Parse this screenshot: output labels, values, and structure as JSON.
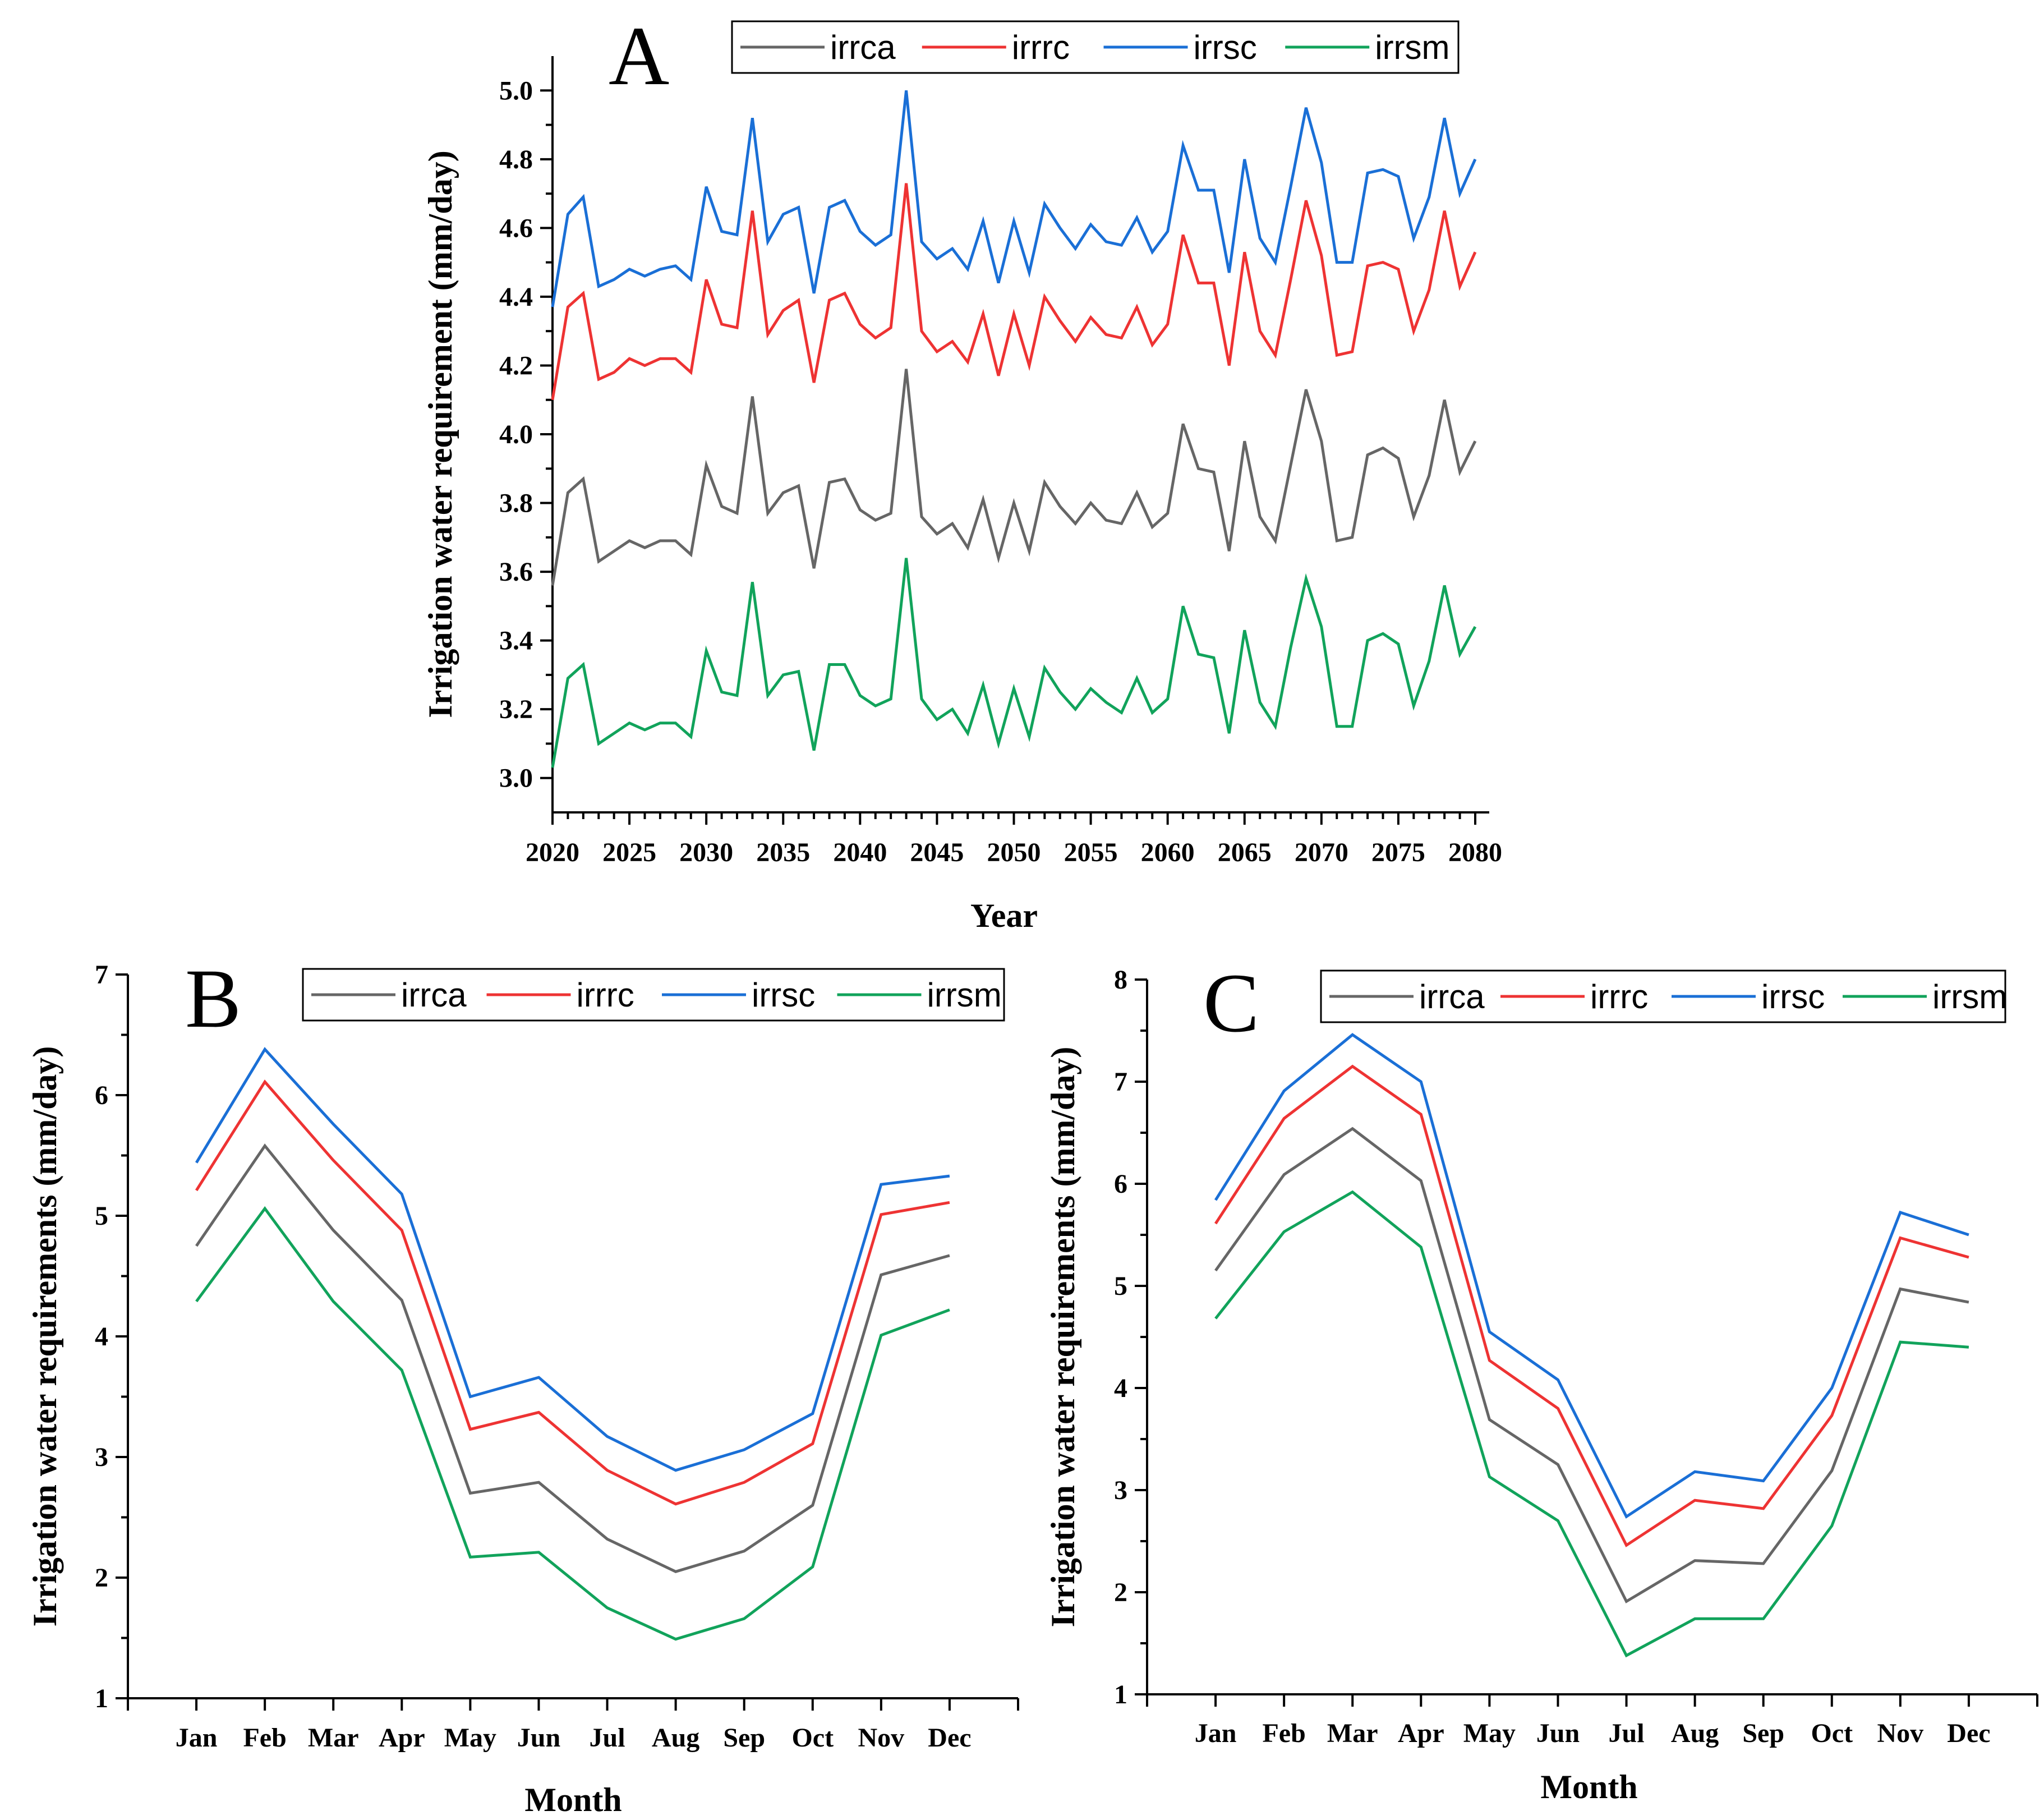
{
  "colors": {
    "irrca": "#666666",
    "irrrc": "#ee3333",
    "irrsc": "#1a6fd6",
    "irrsm": "#11a35b"
  },
  "chart_data": [
    {
      "type": "line",
      "panel": "A",
      "xlabel": "Year",
      "ylabel": "Irrigation water requirement (mm/day)",
      "xlim": [
        2020,
        2080
      ],
      "ylim": [
        2.9,
        5.1
      ],
      "xticks": [
        "2020",
        "2025",
        "2030",
        "2035",
        "2040",
        "2045",
        "2050",
        "2055",
        "2060",
        "2065",
        "2070",
        "2075",
        "2080"
      ],
      "yticks": [
        "3.0",
        "3.2",
        "3.4",
        "3.6",
        "3.8",
        "4.0",
        "4.2",
        "4.4",
        "4.6",
        "4.8",
        "5.0"
      ],
      "legend": [
        "irrca",
        "irrrc",
        "irrsc",
        "irrsm"
      ],
      "x": [
        2020,
        2021,
        2022,
        2023,
        2024,
        2025,
        2026,
        2027,
        2028,
        2029,
        2030,
        2031,
        2032,
        2033,
        2034,
        2035,
        2036,
        2037,
        2038,
        2039,
        2040,
        2041,
        2042,
        2043,
        2044,
        2045,
        2046,
        2047,
        2048,
        2049,
        2050,
        2051,
        2052,
        2053,
        2054,
        2055,
        2056,
        2057,
        2058,
        2059,
        2060,
        2061,
        2062,
        2063,
        2064,
        2065,
        2066,
        2067,
        2068,
        2069,
        2070,
        2071,
        2072,
        2073,
        2074,
        2075,
        2076,
        2077,
        2078,
        2079,
        2080
      ],
      "series": [
        {
          "name": "irrca",
          "values": [
            3.56,
            3.83,
            3.87,
            3.63,
            3.66,
            3.69,
            3.67,
            3.69,
            3.69,
            3.65,
            3.91,
            3.79,
            3.77,
            4.11,
            3.77,
            3.83,
            3.85,
            3.61,
            3.86,
            3.87,
            3.78,
            3.75,
            3.77,
            4.19,
            3.76,
            3.71,
            3.74,
            3.67,
            3.81,
            3.64,
            3.8,
            3.66,
            3.86,
            3.79,
            3.74,
            3.8,
            3.75,
            3.74,
            3.83,
            3.73,
            3.77,
            4.03,
            3.9,
            3.89,
            3.66,
            3.98,
            3.76,
            3.69,
            3.91,
            4.13,
            3.98,
            3.69,
            3.7,
            3.94,
            3.96,
            3.93,
            3.76,
            3.88,
            4.1,
            3.89,
            3.98
          ]
        },
        {
          "name": "irrrc",
          "values": [
            4.1,
            4.37,
            4.41,
            4.16,
            4.18,
            4.22,
            4.2,
            4.22,
            4.22,
            4.18,
            4.45,
            4.32,
            4.31,
            4.65,
            4.29,
            4.36,
            4.39,
            4.15,
            4.39,
            4.41,
            4.32,
            4.28,
            4.31,
            4.73,
            4.3,
            4.24,
            4.27,
            4.21,
            4.35,
            4.17,
            4.35,
            4.2,
            4.4,
            4.33,
            4.27,
            4.34,
            4.29,
            4.28,
            4.37,
            4.26,
            4.32,
            4.58,
            4.44,
            4.44,
            4.2,
            4.53,
            4.3,
            4.23,
            4.45,
            4.68,
            4.52,
            4.23,
            4.24,
            4.49,
            4.5,
            4.48,
            4.3,
            4.42,
            4.65,
            4.43,
            4.53
          ]
        },
        {
          "name": "irrsc",
          "values": [
            4.37,
            4.64,
            4.69,
            4.43,
            4.45,
            4.48,
            4.46,
            4.48,
            4.49,
            4.45,
            4.72,
            4.59,
            4.58,
            4.92,
            4.56,
            4.64,
            4.66,
            4.41,
            4.66,
            4.68,
            4.59,
            4.55,
            4.58,
            5.0,
            4.56,
            4.51,
            4.54,
            4.48,
            4.62,
            4.44,
            4.62,
            4.47,
            4.67,
            4.6,
            4.54,
            4.61,
            4.56,
            4.55,
            4.63,
            4.53,
            4.59,
            4.84,
            4.71,
            4.71,
            4.47,
            4.8,
            4.57,
            4.5,
            4.72,
            4.95,
            4.79,
            4.5,
            4.5,
            4.76,
            4.77,
            4.75,
            4.57,
            4.69,
            4.92,
            4.7,
            4.8
          ]
        },
        {
          "name": "irrsm",
          "values": [
            3.03,
            3.29,
            3.33,
            3.1,
            3.13,
            3.16,
            3.14,
            3.16,
            3.16,
            3.12,
            3.37,
            3.25,
            3.24,
            3.57,
            3.24,
            3.3,
            3.31,
            3.08,
            3.33,
            3.33,
            3.24,
            3.21,
            3.23,
            3.64,
            3.23,
            3.17,
            3.2,
            3.13,
            3.27,
            3.1,
            3.26,
            3.12,
            3.32,
            3.25,
            3.2,
            3.26,
            3.22,
            3.19,
            3.29,
            3.19,
            3.23,
            3.5,
            3.36,
            3.35,
            3.13,
            3.43,
            3.22,
            3.15,
            3.38,
            3.58,
            3.44,
            3.15,
            3.15,
            3.4,
            3.42,
            3.39,
            3.21,
            3.34,
            3.56,
            3.36,
            3.44
          ]
        }
      ]
    },
    {
      "type": "line",
      "panel": "B",
      "xlabel": "Month",
      "ylabel": "Irrigation water requirements (mm/day)",
      "ylim": [
        1,
        7
      ],
      "yticks": [
        "1",
        "2",
        "3",
        "4",
        "5",
        "6",
        "7"
      ],
      "categories": [
        "Jan",
        "Feb",
        "Mar",
        "Apr",
        "May",
        "Jun",
        "Jul",
        "Aug",
        "Sep",
        "Oct",
        "Nov",
        "Dec"
      ],
      "legend": [
        "irrca",
        "irrrc",
        "irrsc",
        "irrsm"
      ],
      "series": [
        {
          "name": "irrca",
          "values": [
            4.75,
            5.58,
            4.88,
            4.3,
            2.7,
            2.79,
            2.32,
            2.05,
            2.22,
            2.6,
            4.51,
            4.67
          ]
        },
        {
          "name": "irrrc",
          "values": [
            5.21,
            6.11,
            5.46,
            4.88,
            3.23,
            3.37,
            2.89,
            2.61,
            2.79,
            3.11,
            5.01,
            5.11
          ]
        },
        {
          "name": "irrsc",
          "values": [
            5.44,
            6.38,
            5.76,
            5.18,
            3.5,
            3.66,
            3.17,
            2.89,
            3.06,
            3.36,
            5.26,
            5.33
          ]
        },
        {
          "name": "irrsm",
          "values": [
            4.29,
            5.06,
            4.29,
            3.72,
            2.17,
            2.21,
            1.75,
            1.49,
            1.66,
            2.09,
            4.01,
            4.22
          ]
        }
      ]
    },
    {
      "type": "line",
      "panel": "C",
      "xlabel": "Month",
      "ylabel": "Irrigation water requirements (mm/day)",
      "ylim": [
        1,
        8
      ],
      "yticks": [
        "1",
        "2",
        "3",
        "4",
        "5",
        "6",
        "7",
        "8"
      ],
      "categories": [
        "Jan",
        "Feb",
        "Mar",
        "Apr",
        "May",
        "Jun",
        "Jul",
        "Aug",
        "Sep",
        "Oct",
        "Nov",
        "Dec"
      ],
      "legend": [
        "irrca",
        "irrrc",
        "irrsc",
        "irrsm"
      ],
      "series": [
        {
          "name": "irrca",
          "values": [
            5.15,
            6.09,
            6.54,
            6.03,
            3.69,
            3.25,
            1.91,
            2.31,
            2.28,
            3.19,
            4.97,
            4.84
          ]
        },
        {
          "name": "irrrc",
          "values": [
            5.61,
            6.64,
            7.15,
            6.68,
            4.27,
            3.8,
            2.46,
            2.9,
            2.82,
            3.73,
            5.47,
            5.28
          ]
        },
        {
          "name": "irrsc",
          "values": [
            5.84,
            6.91,
            7.46,
            7.0,
            4.55,
            4.08,
            2.74,
            3.18,
            3.09,
            4.0,
            5.72,
            5.5
          ]
        },
        {
          "name": "irrsm",
          "values": [
            4.68,
            5.53,
            5.92,
            5.38,
            3.13,
            2.7,
            1.38,
            1.74,
            1.74,
            2.65,
            4.45,
            4.4
          ]
        }
      ]
    }
  ]
}
